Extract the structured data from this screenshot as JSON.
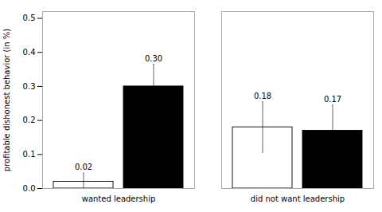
{
  "chart_data": {
    "type": "bar",
    "ylabel": "profitable dishonest behavior (in %)",
    "categories": [
      "wanted leadership",
      "did not want leadership"
    ],
    "series": [
      {
        "color": "white",
        "values": [
          0.02,
          0.18
        ],
        "errors": [
          0.025,
          0.075
        ],
        "value_labels": [
          "0.02",
          "0.18"
        ]
      },
      {
        "color": "black",
        "values": [
          0.3,
          0.17
        ],
        "errors": [
          0.065,
          0.075
        ],
        "value_labels": [
          "0.30",
          "0.17"
        ]
      }
    ],
    "ylim": [
      0.0,
      0.52
    ],
    "yticks": [
      {
        "value": 0.0,
        "label": "0.0"
      },
      0.1,
      0.2,
      0.3,
      0.4,
      0.5
    ],
    "grid": false,
    "data_labels": true
  }
}
